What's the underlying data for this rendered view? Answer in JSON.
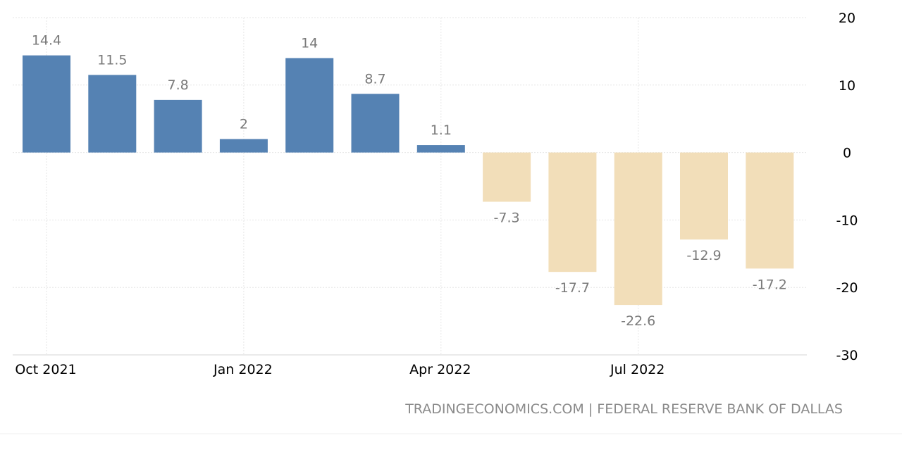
{
  "chart_data": {
    "type": "bar",
    "categories": [
      "Oct 2021",
      "Nov 2021",
      "Dec 2021",
      "Jan 2022",
      "Feb 2022",
      "Mar 2022",
      "Apr 2022",
      "May 2022",
      "Jun 2022",
      "Jul 2022",
      "Aug 2022",
      "Sep 2022"
    ],
    "values": [
      14.4,
      11.5,
      7.8,
      2,
      14,
      8.7,
      1.1,
      -7.3,
      -17.7,
      -22.6,
      -12.9,
      -17.2
    ],
    "value_labels": [
      "14.4",
      "11.5",
      "7.8",
      "2",
      "14",
      "8.7",
      "1.1",
      "-7.3",
      "-17.7",
      "-22.6",
      "-12.9",
      "-17.2"
    ],
    "ylim": [
      -30,
      20
    ],
    "yticks": [
      20,
      10,
      0,
      -10,
      -20,
      -30
    ],
    "ytick_labels": [
      "20",
      "10",
      "0",
      "-10",
      "-20",
      "-30"
    ],
    "xtick_labels": [
      {
        "label": "Oct 2021",
        "category_index": 0
      },
      {
        "label": "Jan 2022",
        "category_index": 3
      },
      {
        "label": "Apr 2022",
        "category_index": 6
      },
      {
        "label": "Jul 2022",
        "category_index": 9
      }
    ],
    "y_axis_side": "right",
    "grid": true,
    "colors": {
      "positive": "#5582b3",
      "negative": "#f2deb9"
    }
  },
  "footer": {
    "source": "TRADINGECONOMICS.COM | FEDERAL RESERVE BANK OF DALLAS"
  }
}
